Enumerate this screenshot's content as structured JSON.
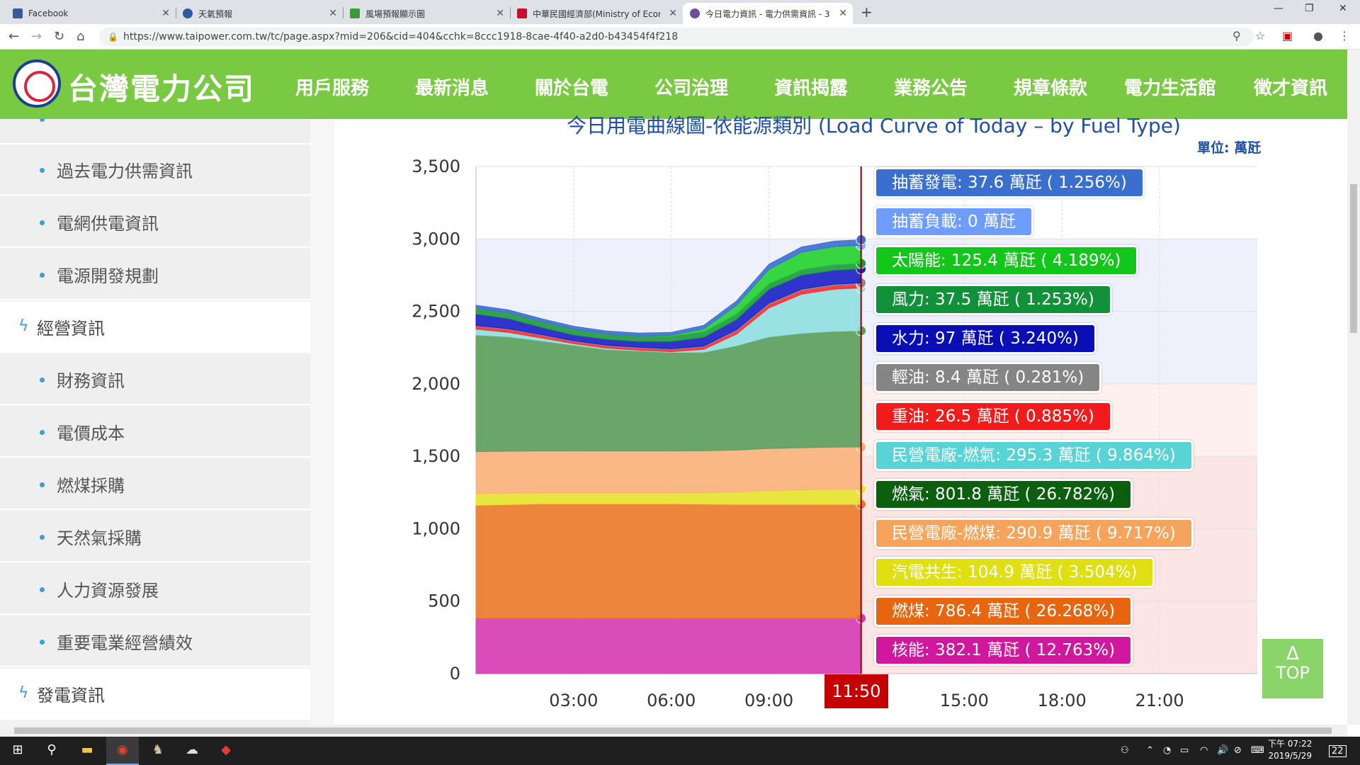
{
  "browser": {
    "tabs": [
      {
        "title": "Facebook",
        "favicon_color": "#3b5998"
      },
      {
        "title": "天氣預報",
        "favicon_color": "#2d5aa0"
      },
      {
        "title": "風場預報顯示圖",
        "favicon_color": "#3a9b3a"
      },
      {
        "title": "中華民國經濟部(Ministry of Econ",
        "favicon_color": "#c8102e"
      },
      {
        "title": "今日電力資訊 - 電力供需資訊 - 3",
        "favicon_color": "#6c4da1"
      }
    ],
    "url": "https://www.taipower.com.tw/tc/page.aspx?mid=206&cid=404&cchk=8ccc1918-8cae-4f40-a2d0-b43454f4f218"
  },
  "site": {
    "logo_text": "台灣電力公司",
    "nav": [
      "用戶服務",
      "最新消息",
      "關於台電",
      "公司治理",
      "資訊揭露",
      "業務公告",
      "規章條款",
      "電力生活館",
      "徵才資訊"
    ]
  },
  "sidebar": {
    "items": [
      {
        "label": "過去電力供需資訊",
        "type": "sub"
      },
      {
        "label": "電網供電資訊",
        "type": "sub"
      },
      {
        "label": "電源開發規劃",
        "type": "sub"
      },
      {
        "label": "經營資訊",
        "type": "main"
      },
      {
        "label": "財務資訊",
        "type": "sub"
      },
      {
        "label": "電價成本",
        "type": "sub"
      },
      {
        "label": "燃煤採購",
        "type": "sub"
      },
      {
        "label": "天然氣採購",
        "type": "sub"
      },
      {
        "label": "人力資源發展",
        "type": "sub"
      },
      {
        "label": "重要電業經營績效",
        "type": "sub"
      },
      {
        "label": "發電資訊",
        "type": "main"
      }
    ]
  },
  "chart": {
    "title": "今日用電曲線圖-依能源類別 (Load Curve of Today – by Fuel Type)",
    "unit_label": "單位: 萬瓩",
    "current_time": "11:50"
  },
  "chart_data": {
    "type": "area",
    "title": "今日用電曲線圖-依能源類別 (Load Curve of Today – by Fuel Type)",
    "ylabel": "單位: 萬瓩",
    "ylim": [
      0,
      3500
    ],
    "yticks": [
      "0",
      "500",
      "1,000",
      "1,500",
      "2,000",
      "2,500",
      "3,000",
      "3,500"
    ],
    "xticks": [
      "03:00",
      "06:00",
      "09:00",
      "15:00",
      "18:00",
      "21:00"
    ],
    "xlim_hours": [
      0,
      24
    ],
    "x_hours": [
      0,
      1,
      2,
      3,
      4,
      5,
      6,
      7,
      8,
      9,
      10,
      11,
      11.83
    ],
    "series": [
      {
        "name": "核能",
        "color": "#d63bb2",
        "values": [
          382,
          382,
          382,
          382,
          382,
          382,
          382,
          382,
          382,
          382,
          382,
          382,
          382.1
        ]
      },
      {
        "name": "燃煤",
        "color": "#ec7a2a",
        "values": [
          780,
          785,
          790,
          790,
          790,
          790,
          790,
          788,
          786,
          786,
          786,
          786,
          786.4
        ]
      },
      {
        "name": "汽電共生",
        "color": "#e5e52b",
        "values": [
          80,
          78,
          75,
          75,
          75,
          75,
          75,
          78,
          85,
          95,
          100,
          104,
          104.9
        ]
      },
      {
        "name": "民營電廠-燃煤",
        "color": "#f8b27a",
        "values": [
          290,
          290,
          290,
          290,
          290,
          290,
          290,
          290,
          290,
          291,
          291,
          291,
          290.9
        ]
      },
      {
        "name": "燃氣",
        "color": "#5a9d5a",
        "values": [
          805,
          790,
          760,
          730,
          700,
          690,
          680,
          680,
          720,
          770,
          790,
          800,
          801.8
        ]
      },
      {
        "name": "民營電廠-燃氣",
        "color": "#8fdfe0",
        "values": [
          40,
          30,
          20,
          10,
          10,
          5,
          5,
          20,
          80,
          200,
          270,
          290,
          295.3
        ]
      },
      {
        "name": "重油",
        "color": "#ff2a2a",
        "values": [
          20,
          20,
          18,
          15,
          15,
          15,
          15,
          18,
          22,
          25,
          26,
          26,
          26.5
        ]
      },
      {
        "name": "輕油",
        "color": "#8c8c8c",
        "values": [
          5,
          5,
          5,
          5,
          5,
          5,
          5,
          5,
          8,
          8,
          8,
          8,
          8.4
        ]
      },
      {
        "name": "水力",
        "color": "#1a1fc8",
        "values": [
          80,
          70,
          50,
          40,
          40,
          40,
          50,
          60,
          70,
          95,
          97,
          97,
          97
        ]
      },
      {
        "name": "風力",
        "color": "#1c9a3c",
        "values": [
          40,
          40,
          40,
          40,
          38,
          38,
          38,
          38,
          38,
          38,
          38,
          38,
          37.5
        ]
      },
      {
        "name": "太陽能",
        "color": "#22d12e",
        "values": [
          0,
          0,
          0,
          0,
          0,
          0,
          5,
          20,
          60,
          100,
          120,
          125,
          125.4
        ]
      },
      {
        "name": "抽蓄負載",
        "color": "#7da9ff",
        "values": [
          0,
          0,
          0,
          0,
          0,
          0,
          0,
          0,
          0,
          0,
          0,
          0,
          0
        ]
      },
      {
        "name": "抽蓄發電",
        "color": "#3a6fd0",
        "values": [
          20,
          20,
          20,
          20,
          20,
          20,
          20,
          25,
          30,
          35,
          36,
          37,
          37.6
        ]
      }
    ],
    "tooltips": [
      {
        "text": "抽蓄發電: 37.6 萬瓩 ( 1.256%)",
        "color": "#3a6fd0"
      },
      {
        "text": "抽蓄負載: 0 萬瓩",
        "color": "#6f9dff"
      },
      {
        "text": "太陽能: 125.4 萬瓩 ( 4.189%)",
        "color": "#12c61a"
      },
      {
        "text": "風力: 37.5 萬瓩 ( 1.253%)",
        "color": "#11913a"
      },
      {
        "text": "水力: 97 萬瓩 ( 3.240%)",
        "color": "#0a0fb5"
      },
      {
        "text": "輕油: 8.4 萬瓩 ( 0.281%)",
        "color": "#858585"
      },
      {
        "text": "重油: 26.5 萬瓩 ( 0.885%)",
        "color": "#f21b1b"
      },
      {
        "text": "民營電廠-燃氣: 295.3 萬瓩 ( 9.864%)",
        "color": "#58d3d6"
      },
      {
        "text": "燃氣: 801.8 萬瓩 ( 26.782%)",
        "color": "#0d5f10"
      },
      {
        "text": "民營電廠-燃煤: 290.9 萬瓩 ( 9.717%)",
        "color": "#f6a35b"
      },
      {
        "text": "汽電共生: 104.9 萬瓩 ( 3.504%)",
        "color": "#dfdf12"
      },
      {
        "text": "燃煤: 786.4 萬瓩 ( 26.268%)",
        "color": "#e8650f"
      },
      {
        "text": "核能: 382.1 萬瓩 ( 12.763%)",
        "color": "#d0189f"
      }
    ]
  },
  "page": {
    "top_button": "TOP",
    "top_arrow": "Δ"
  },
  "taskbar": {
    "time": "07:22",
    "ampm": "下午",
    "date": "2019/5/29",
    "notifications": "22"
  }
}
